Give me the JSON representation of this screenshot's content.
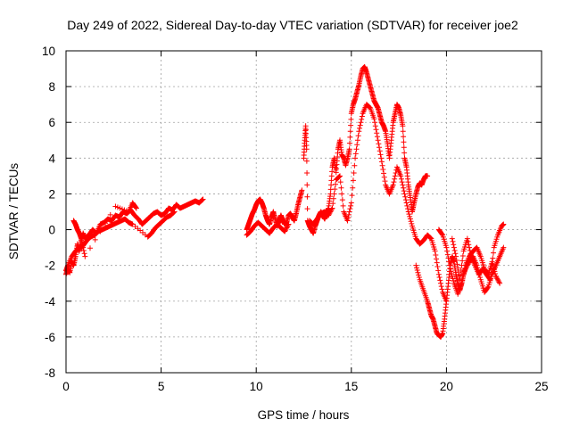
{
  "chart_data": {
    "type": "scatter",
    "title": "Day 249 of 2022, Sidereal Day-to-day VTEC variation (SDTVAR) for receiver joe2",
    "xlabel": "GPS time / hours",
    "ylabel": "SDTVAR / TECUs",
    "xlim": [
      0,
      25
    ],
    "ylim": [
      -8,
      10
    ],
    "xticks": [
      "0",
      "5",
      "10",
      "15",
      "20",
      "25"
    ],
    "yticks": [
      "-8",
      "-6",
      "-4",
      "-2",
      "0",
      "2",
      "4",
      "6",
      "8",
      "10"
    ],
    "grid": true,
    "marker": "+",
    "color": "#ff0000",
    "series": [
      {
        "name": "segment-1",
        "x": [
          0,
          0.1,
          0.2,
          0.3,
          0.4,
          0.5,
          0.6,
          0.7,
          0.8,
          0.9,
          1.0,
          1.2,
          1.4,
          1.6,
          1.8,
          2.0,
          2.2,
          2.4,
          2.6,
          2.8,
          3.0,
          3.2,
          3.4,
          3.6,
          3.8,
          4.0,
          4.2,
          4.4,
          4.6,
          4.8,
          5.0,
          5.2,
          5.4,
          5.6,
          5.8,
          6.0,
          6.2,
          6.4,
          6.6,
          6.8,
          7.0,
          7.2
        ],
        "y": [
          -2.5,
          -2.2,
          -2.4,
          -1.8,
          -2.0,
          -1.5,
          -0.8,
          -1.2,
          -0.6,
          -0.2,
          -0.5,
          -0.3,
          0.0,
          -0.2,
          0.3,
          0.4,
          0.6,
          0.5,
          0.8,
          0.7,
          1.0,
          0.9,
          1.1,
          0.8,
          0.6,
          0.3,
          0.5,
          0.7,
          0.9,
          1.0,
          0.8,
          0.9,
          1.2,
          1.1,
          1.4,
          1.2,
          1.3,
          1.4,
          1.5,
          1.6,
          1.5,
          1.7
        ]
      },
      {
        "name": "segment-1-lower",
        "x": [
          0,
          0.1,
          0.3,
          0.5,
          0.7,
          0.9,
          1.1,
          1.3,
          1.5,
          1.7,
          1.9,
          2.1,
          2.3,
          2.5,
          2.7,
          2.9,
          3.1,
          3.3,
          3.5,
          4.3,
          4.5,
          4.7,
          4.9,
          5.1,
          5.3,
          5.5,
          5.7
        ],
        "y": [
          -2.3,
          -2.0,
          -1.5,
          -1.2,
          -1.0,
          -0.9,
          -0.6,
          -0.4,
          -0.3,
          -0.1,
          0.0,
          0.1,
          0.2,
          0.3,
          0.4,
          0.5,
          0.6,
          0.4,
          0.3,
          -0.4,
          -0.2,
          0.1,
          0.3,
          0.5,
          0.7,
          0.8,
          1.0
        ]
      },
      {
        "name": "segment-1-spikes",
        "x": [
          0.4,
          0.5,
          0.6,
          0.7,
          0.8,
          1.0,
          2.6,
          3.3,
          3.5,
          3.7
        ],
        "y": [
          0.5,
          0.3,
          0.0,
          -0.2,
          -0.5,
          -1.5,
          1.3,
          1.0,
          1.5,
          1.2
        ]
      },
      {
        "name": "segment-2",
        "x": [
          9.5,
          9.6,
          9.7,
          9.8,
          9.9,
          10.0,
          10.1,
          10.2,
          10.3,
          10.4,
          10.5,
          10.6,
          10.7,
          10.8,
          10.9,
          11.0,
          11.1,
          11.2,
          11.3,
          11.4,
          11.5,
          11.6,
          11.7,
          11.8,
          11.9,
          12.0,
          12.1,
          12.2,
          12.3,
          12.4
        ],
        "y": [
          0.0,
          0.3,
          0.6,
          0.9,
          1.1,
          1.4,
          1.6,
          1.7,
          1.5,
          1.2,
          0.8,
          0.5,
          0.3,
          0.7,
          1.0,
          0.6,
          0.2,
          0.5,
          0.8,
          0.5,
          0.3,
          0.4,
          0.8,
          0.9,
          0.7,
          0.5,
          0.9,
          1.4,
          1.8,
          2.2
        ]
      },
      {
        "name": "segment-2-lower",
        "x": [
          9.5,
          9.7,
          9.9,
          10.1,
          10.3,
          10.5,
          10.7,
          10.9,
          11.1,
          11.3,
          11.5,
          11.7
        ],
        "y": [
          -0.3,
          -0.1,
          0.2,
          0.4,
          0.2,
          0.0,
          -0.2,
          0.1,
          0.3,
          0.1,
          -0.1,
          0.3
        ]
      },
      {
        "name": "segment-3",
        "x": [
          12.5,
          12.55,
          12.6,
          12.65,
          12.7,
          12.8,
          12.9,
          13.0,
          13.1,
          13.2,
          13.3,
          13.4,
          13.5,
          13.6,
          13.7,
          13.8,
          13.9,
          14.0,
          14.1,
          14.2,
          14.3,
          14.4,
          14.5,
          14.6,
          14.7,
          14.8,
          14.9,
          15.0,
          15.1,
          15.2,
          15.3,
          15.4,
          15.5,
          15.6,
          15.7,
          15.8,
          15.9,
          16.0,
          16.1,
          16.2,
          16.3,
          16.4,
          16.5,
          16.6,
          16.7,
          16.8,
          16.9,
          17.0,
          17.1,
          17.2,
          17.3,
          17.4,
          17.5,
          17.6,
          17.7,
          17.8,
          17.9,
          18.0,
          18.1,
          18.2,
          18.3,
          18.4,
          18.5,
          18.6,
          18.7,
          18.8,
          18.9,
          19.0
        ],
        "y": [
          4.0,
          5.0,
          5.8,
          4.5,
          0.5,
          0.2,
          0.0,
          -0.2,
          0.2,
          0.5,
          0.8,
          1.0,
          0.8,
          0.6,
          0.9,
          1.2,
          2.0,
          3.5,
          4.0,
          3.2,
          4.5,
          5.0,
          4.2,
          4.0,
          3.6,
          4.0,
          4.5,
          6.5,
          7.0,
          7.3,
          7.7,
          8.1,
          8.6,
          9.0,
          9.1,
          8.8,
          8.4,
          8.0,
          7.6,
          7.2,
          7.0,
          6.8,
          6.4,
          6.0,
          5.8,
          5.5,
          4.8,
          4.0,
          5.0,
          6.0,
          6.5,
          7.0,
          6.8,
          6.4,
          5.8,
          4.0,
          3.5,
          2.5,
          1.8,
          1.0,
          1.5,
          2.0,
          2.4,
          2.6,
          2.5,
          2.8,
          3.0,
          3.0
        ]
      },
      {
        "name": "segment-3-lower",
        "x": [
          12.8,
          13.0,
          13.2,
          13.4,
          13.6,
          13.8,
          14.0,
          14.2,
          14.4,
          14.6,
          14.8,
          15.0,
          15.2,
          15.4,
          15.6,
          15.8,
          16.0,
          16.2,
          16.4,
          16.6,
          16.8,
          17.0,
          17.2,
          17.4,
          17.6,
          17.8,
          18.0,
          18.2,
          18.4,
          18.6,
          18.8,
          19.0,
          19.2,
          19.4,
          19.6,
          19.8,
          20.0
        ],
        "y": [
          0.5,
          0.3,
          0.6,
          0.9,
          1.0,
          0.8,
          1.2,
          2.8,
          3.0,
          1.0,
          0.5,
          1.5,
          4.0,
          5.5,
          6.5,
          7.0,
          6.8,
          6.2,
          5.0,
          3.8,
          2.5,
          2.0,
          2.5,
          3.5,
          3.0,
          2.0,
          1.0,
          0.2,
          -0.5,
          -0.8,
          -0.6,
          -0.3,
          -0.5,
          -1.2,
          -2.5,
          -3.5,
          -4.0
        ]
      },
      {
        "name": "segment-3-dip",
        "x": [
          18.4,
          18.6,
          18.8,
          19.0,
          19.1,
          19.2,
          19.3,
          19.4,
          19.5,
          19.6,
          19.7,
          19.8,
          19.9,
          20.0,
          20.1,
          20.2,
          20.3,
          20.4,
          20.5,
          20.6,
          20.7,
          20.8,
          20.9,
          21.0,
          21.2,
          21.4,
          21.6,
          21.8,
          22.0,
          22.2,
          22.4,
          22.6,
          22.8,
          23.0
        ],
        "y": [
          -2.0,
          -2.8,
          -3.4,
          -4.0,
          -4.4,
          -4.8,
          -5.0,
          -5.4,
          -5.8,
          -5.9,
          -6.0,
          -5.8,
          -5.0,
          -4.0,
          -3.0,
          -2.0,
          -1.5,
          -1.8,
          -2.5,
          -3.0,
          -3.4,
          -3.0,
          -2.5,
          -2.2,
          -1.8,
          -1.5,
          -2.0,
          -2.8,
          -3.5,
          -3.2,
          -2.5,
          -2.0,
          -1.5,
          -1.0
        ]
      },
      {
        "name": "segment-3-tail",
        "x": [
          20.3,
          20.5,
          20.7,
          20.9,
          21.1,
          21.3,
          21.5,
          21.7,
          21.9,
          22.1,
          22.3,
          22.5,
          22.7,
          22.9,
          23.0
        ],
        "y": [
          -0.5,
          -1.5,
          -2.8,
          -1.2,
          -0.5,
          -1.5,
          -2.0,
          -2.5,
          -2.2,
          -2.5,
          -2.8,
          -1.0,
          -0.3,
          0.2,
          0.3
        ]
      },
      {
        "name": "segment-3-late",
        "x": [
          19.6,
          19.8,
          20.0,
          20.2,
          20.4,
          20.6,
          20.8,
          21.0,
          21.2,
          21.4,
          21.6,
          21.8,
          22.0,
          22.2,
          22.4,
          22.6,
          22.8
        ],
        "y": [
          0.0,
          -0.3,
          -1.0,
          -2.2,
          -3.0,
          -3.6,
          -3.0,
          -2.0,
          -1.5,
          -1.2,
          -1.0,
          -1.5,
          -2.2,
          -2.5,
          -1.8,
          -2.6,
          -3.0
        ]
      }
    ]
  }
}
